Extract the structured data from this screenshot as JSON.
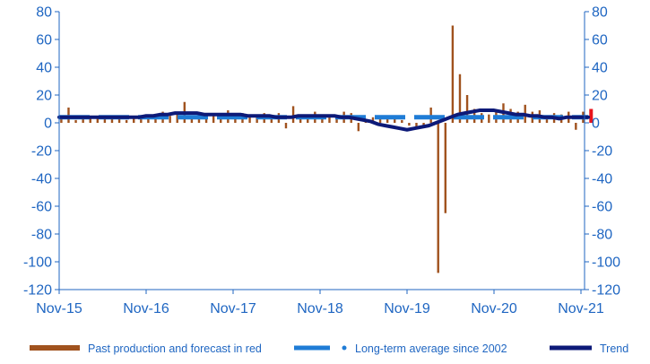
{
  "chart_data": {
    "type": "bar",
    "x": [
      "Nov-15",
      "Dec-15",
      "Jan-16",
      "Feb-16",
      "Mar-16",
      "Apr-16",
      "May-16",
      "Jun-16",
      "Jul-16",
      "Aug-16",
      "Sep-16",
      "Oct-16",
      "Nov-16",
      "Dec-16",
      "Jan-17",
      "Feb-17",
      "Mar-17",
      "Apr-17",
      "May-17",
      "Jun-17",
      "Jul-17",
      "Aug-17",
      "Sep-17",
      "Oct-17",
      "Nov-17",
      "Dec-17",
      "Jan-18",
      "Feb-18",
      "Mar-18",
      "Apr-18",
      "May-18",
      "Jun-18",
      "Jul-18",
      "Aug-18",
      "Sep-18",
      "Oct-18",
      "Nov-18",
      "Dec-18",
      "Jan-19",
      "Feb-19",
      "Mar-19",
      "Apr-19",
      "May-19",
      "Jun-19",
      "Jul-19",
      "Aug-19",
      "Sep-19",
      "Oct-19",
      "Nov-19",
      "Dec-19",
      "Jan-20",
      "Feb-20",
      "Mar-20",
      "Apr-20",
      "May-20",
      "Jun-20",
      "Jul-20",
      "Aug-20",
      "Sep-20",
      "Oct-20",
      "Nov-20",
      "Dec-20",
      "Jan-21",
      "Feb-21",
      "Mar-21",
      "Apr-21",
      "May-21",
      "Jun-21",
      "Jul-21",
      "Aug-21",
      "Sep-21",
      "Oct-21",
      "Nov-21",
      "Dec-21"
    ],
    "series": [
      {
        "name": "Past production and forecast in red",
        "kind": "bar",
        "color": "#a0521e",
        "forecast_color": "#e8141c",
        "forecast_from_index": 73,
        "values": [
          3,
          11,
          2,
          3,
          4,
          3,
          3,
          4,
          3,
          2,
          3,
          3,
          4,
          6,
          8,
          5,
          7,
          15,
          3,
          5,
          6,
          7,
          5,
          9,
          4,
          7,
          5,
          6,
          7,
          5,
          7,
          -4,
          12,
          6,
          4,
          8,
          6,
          4,
          5,
          8,
          7,
          -6,
          2,
          4,
          3,
          5,
          4,
          2,
          -2,
          -3,
          -2,
          11,
          -108,
          -65,
          70,
          35,
          20,
          10,
          7,
          6,
          8,
          14,
          10,
          8,
          13,
          8,
          9,
          5,
          7,
          6,
          8,
          -5,
          8,
          10
        ]
      },
      {
        "name": "Long-term average since 2002",
        "kind": "dashed-line",
        "color": "#1f7cd6",
        "values": [
          4,
          4,
          4,
          4,
          4,
          4,
          4,
          4,
          4,
          4,
          4,
          4,
          4,
          4,
          4,
          4,
          4,
          4,
          4,
          4,
          4,
          4,
          4,
          4,
          4,
          4,
          4,
          4,
          4,
          4,
          4,
          4,
          4,
          4,
          4,
          4,
          4,
          4,
          4,
          4,
          4,
          4,
          4,
          4,
          4,
          4,
          4,
          4,
          4,
          4,
          4,
          4,
          4,
          4,
          4,
          4,
          4,
          4,
          4,
          4,
          4,
          4,
          4,
          4,
          4,
          4,
          4,
          4,
          4,
          4,
          4,
          4,
          4,
          4
        ]
      },
      {
        "name": "Trend",
        "kind": "line",
        "color": "#0d1a78",
        "values": [
          4,
          4,
          4,
          4,
          4,
          4,
          4,
          4,
          4,
          4,
          4,
          4,
          5,
          5,
          6,
          6,
          7,
          7,
          7,
          7,
          6,
          6,
          6,
          6,
          6,
          6,
          5,
          5,
          5,
          5,
          4,
          4,
          4,
          5,
          5,
          5,
          5,
          5,
          5,
          4,
          4,
          3,
          2,
          1,
          -1,
          -2,
          -3,
          -4,
          -5,
          -4,
          -3,
          -2,
          0,
          2,
          4,
          6,
          7,
          8,
          9,
          9,
          9,
          8,
          7,
          6,
          6,
          5,
          5,
          4,
          4,
          3,
          4,
          4,
          4,
          4
        ]
      }
    ],
    "ylim": [
      -120,
      80
    ],
    "yticks": [
      "80",
      "60",
      "40",
      "20",
      "0",
      "-20",
      "-40",
      "-60",
      "-80",
      "-100",
      "-120"
    ],
    "xtick_labels": [
      "Nov-15",
      "Nov-16",
      "Nov-17",
      "Nov-18",
      "Nov-19",
      "Nov-20",
      "Nov-21"
    ],
    "xtick_indices": [
      0,
      12,
      24,
      36,
      48,
      60,
      72
    ],
    "secondary_y_axis": true,
    "grid": false,
    "legend_position": "bottom",
    "colors": {
      "axis": "#1f66c2",
      "ticks_text": "#1f66c2"
    }
  }
}
